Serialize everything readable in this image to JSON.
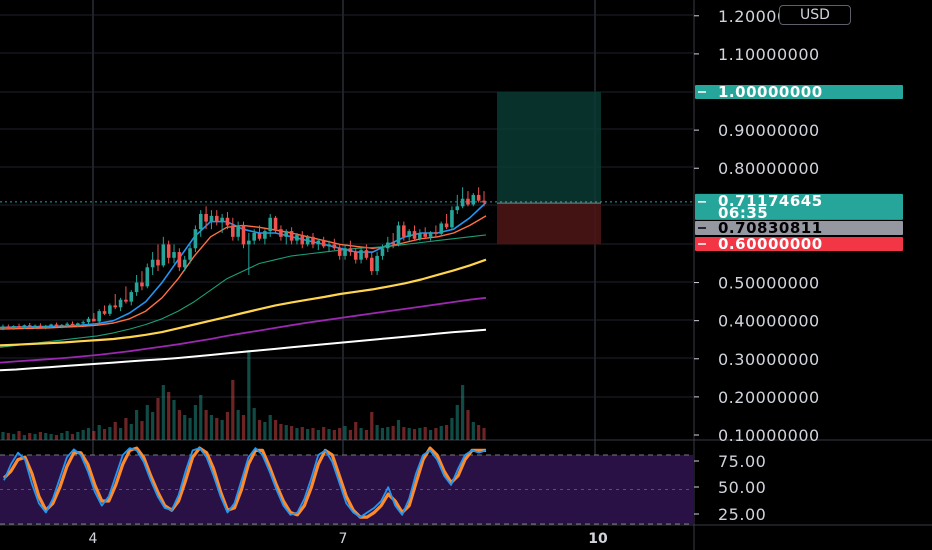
{
  "currency": "USD",
  "colors": {
    "up": "#26a69a",
    "down": "#ef5350",
    "ema_fast": "#2196f3",
    "ema_mid": "#ff7043",
    "ema_green": "#1b9e77",
    "ema_yellow": "#ffd54f",
    "ema_purple": "#9c27b0",
    "ema_white": "#ffffff",
    "stoch_k": "#2196f3",
    "stoch_d": "#ff8a2b",
    "stoch_band": "#2a1145"
  },
  "price_axis": {
    "labels": [
      "1.20000000",
      "1.10000000",
      "0.90000000",
      "0.80000000",
      "0.50000000",
      "0.40000000",
      "0.30000000",
      "0.20000000",
      "0.10000000"
    ],
    "values": [
      1.2,
      1.1,
      0.9,
      0.8,
      0.5,
      0.4,
      0.3,
      0.2,
      0.1
    ]
  },
  "price_tags": [
    {
      "label": "1.00000000",
      "value": 1.0,
      "bg": "#26a69a",
      "fg": "#ffffff"
    },
    {
      "label": "0.71174645",
      "countdown": "06:35",
      "value": 0.71174645,
      "bg": "#26a69a",
      "fg": "#ffffff"
    },
    {
      "label": "0.70830811",
      "value": 0.70830811,
      "bg": "#9598a1",
      "fg": "#000000"
    },
    {
      "label": "0.60000000",
      "value": 0.6,
      "bg": "#f23645",
      "fg": "#ffffff"
    }
  ],
  "position": {
    "target": 1.0,
    "entry": 0.70830811,
    "stop": 0.6
  },
  "stoch_axis": {
    "labels": [
      "75.00",
      "50.00",
      "25.00"
    ],
    "values": [
      75,
      50,
      25
    ]
  },
  "date_axis": {
    "labels": [
      "4",
      "7",
      "10"
    ]
  },
  "chart_data": {
    "type": "candlestick",
    "ylim": [
      0.1,
      1.25
    ],
    "candles": [
      [
        0.38,
        0.39,
        0.375,
        0.385
      ],
      [
        0.385,
        0.39,
        0.378,
        0.382
      ],
      [
        0.382,
        0.388,
        0.376,
        0.386
      ],
      [
        0.386,
        0.392,
        0.38,
        0.384
      ],
      [
        0.384,
        0.39,
        0.378,
        0.388
      ],
      [
        0.388,
        0.394,
        0.382,
        0.385
      ],
      [
        0.385,
        0.39,
        0.379,
        0.387
      ],
      [
        0.387,
        0.393,
        0.381,
        0.383
      ],
      [
        0.383,
        0.389,
        0.377,
        0.386
      ],
      [
        0.386,
        0.392,
        0.38,
        0.39
      ],
      [
        0.39,
        0.395,
        0.383,
        0.385
      ],
      [
        0.385,
        0.391,
        0.38,
        0.389
      ],
      [
        0.389,
        0.396,
        0.384,
        0.392
      ],
      [
        0.392,
        0.398,
        0.386,
        0.388
      ],
      [
        0.388,
        0.395,
        0.383,
        0.393
      ],
      [
        0.393,
        0.4,
        0.388,
        0.396
      ],
      [
        0.396,
        0.41,
        0.39,
        0.405
      ],
      [
        0.405,
        0.42,
        0.4,
        0.398
      ],
      [
        0.398,
        0.43,
        0.395,
        0.425
      ],
      [
        0.425,
        0.44,
        0.415,
        0.418
      ],
      [
        0.418,
        0.445,
        0.412,
        0.44
      ],
      [
        0.44,
        0.47,
        0.43,
        0.435
      ],
      [
        0.435,
        0.46,
        0.425,
        0.455
      ],
      [
        0.455,
        0.49,
        0.445,
        0.45
      ],
      [
        0.45,
        0.48,
        0.44,
        0.475
      ],
      [
        0.475,
        0.52,
        0.465,
        0.5
      ],
      [
        0.5,
        0.53,
        0.48,
        0.49
      ],
      [
        0.49,
        0.55,
        0.485,
        0.54
      ],
      [
        0.54,
        0.58,
        0.52,
        0.56
      ],
      [
        0.56,
        0.6,
        0.53,
        0.545
      ],
      [
        0.545,
        0.62,
        0.54,
        0.6
      ],
      [
        0.6,
        0.61,
        0.55,
        0.565
      ],
      [
        0.565,
        0.6,
        0.55,
        0.58
      ],
      [
        0.58,
        0.59,
        0.53,
        0.54
      ],
      [
        0.54,
        0.57,
        0.53,
        0.56
      ],
      [
        0.56,
        0.6,
        0.55,
        0.59
      ],
      [
        0.59,
        0.65,
        0.58,
        0.64
      ],
      [
        0.64,
        0.69,
        0.62,
        0.68
      ],
      [
        0.68,
        0.7,
        0.64,
        0.66
      ],
      [
        0.66,
        0.69,
        0.64,
        0.675
      ],
      [
        0.675,
        0.69,
        0.65,
        0.66
      ],
      [
        0.66,
        0.68,
        0.63,
        0.67
      ],
      [
        0.67,
        0.685,
        0.64,
        0.65
      ],
      [
        0.65,
        0.67,
        0.61,
        0.62
      ],
      [
        0.62,
        0.66,
        0.61,
        0.65
      ],
      [
        0.65,
        0.66,
        0.59,
        0.6
      ],
      [
        0.6,
        0.63,
        0.52,
        0.61
      ],
      [
        0.61,
        0.64,
        0.6,
        0.63
      ],
      [
        0.63,
        0.65,
        0.61,
        0.615
      ],
      [
        0.615,
        0.64,
        0.6,
        0.635
      ],
      [
        0.635,
        0.68,
        0.62,
        0.67
      ],
      [
        0.67,
        0.675,
        0.63,
        0.64
      ],
      [
        0.64,
        0.65,
        0.61,
        0.62
      ],
      [
        0.62,
        0.64,
        0.6,
        0.635
      ],
      [
        0.635,
        0.645,
        0.6,
        0.61
      ],
      [
        0.61,
        0.63,
        0.6,
        0.625
      ],
      [
        0.625,
        0.635,
        0.59,
        0.6
      ],
      [
        0.6,
        0.625,
        0.595,
        0.62
      ],
      [
        0.62,
        0.63,
        0.59,
        0.6
      ],
      [
        0.6,
        0.615,
        0.585,
        0.61
      ],
      [
        0.61,
        0.62,
        0.59,
        0.595
      ],
      [
        0.595,
        0.61,
        0.58,
        0.6
      ],
      [
        0.6,
        0.615,
        0.585,
        0.59
      ],
      [
        0.59,
        0.6,
        0.56,
        0.57
      ],
      [
        0.57,
        0.6,
        0.56,
        0.59
      ],
      [
        0.59,
        0.61,
        0.57,
        0.58
      ],
      [
        0.58,
        0.59,
        0.55,
        0.56
      ],
      [
        0.56,
        0.59,
        0.55,
        0.585
      ],
      [
        0.585,
        0.6,
        0.56,
        0.565
      ],
      [
        0.565,
        0.58,
        0.52,
        0.53
      ],
      [
        0.53,
        0.58,
        0.52,
        0.57
      ],
      [
        0.57,
        0.6,
        0.56,
        0.59
      ],
      [
        0.59,
        0.62,
        0.58,
        0.605
      ],
      [
        0.605,
        0.63,
        0.59,
        0.6
      ],
      [
        0.6,
        0.66,
        0.595,
        0.65
      ],
      [
        0.65,
        0.66,
        0.61,
        0.62
      ],
      [
        0.62,
        0.64,
        0.61,
        0.635
      ],
      [
        0.635,
        0.65,
        0.61,
        0.615
      ],
      [
        0.615,
        0.64,
        0.61,
        0.63
      ],
      [
        0.63,
        0.645,
        0.615,
        0.62
      ],
      [
        0.62,
        0.635,
        0.61,
        0.632
      ],
      [
        0.632,
        0.65,
        0.62,
        0.628
      ],
      [
        0.628,
        0.66,
        0.625,
        0.655
      ],
      [
        0.655,
        0.68,
        0.64,
        0.645
      ],
      [
        0.645,
        0.7,
        0.64,
        0.69
      ],
      [
        0.69,
        0.73,
        0.68,
        0.7
      ],
      [
        0.7,
        0.75,
        0.695,
        0.72
      ],
      [
        0.72,
        0.74,
        0.7,
        0.705
      ],
      [
        0.705,
        0.735,
        0.7,
        0.73
      ],
      [
        0.73,
        0.75,
        0.71,
        0.715
      ],
      [
        0.715,
        0.74,
        0.7,
        0.71
      ]
    ],
    "volume": [
      0.08,
      0.07,
      0.06,
      0.09,
      0.05,
      0.07,
      0.06,
      0.08,
      0.07,
      0.06,
      0.05,
      0.07,
      0.09,
      0.06,
      0.08,
      0.1,
      0.12,
      0.09,
      0.15,
      0.11,
      0.13,
      0.18,
      0.12,
      0.22,
      0.16,
      0.3,
      0.19,
      0.35,
      0.28,
      0.42,
      0.55,
      0.48,
      0.4,
      0.3,
      0.25,
      0.22,
      0.35,
      0.45,
      0.3,
      0.25,
      0.22,
      0.2,
      0.28,
      0.6,
      0.3,
      0.25,
      0.9,
      0.32,
      0.2,
      0.18,
      0.25,
      0.2,
      0.16,
      0.15,
      0.14,
      0.12,
      0.13,
      0.11,
      0.12,
      0.1,
      0.13,
      0.11,
      0.1,
      0.12,
      0.14,
      0.1,
      0.18,
      0.12,
      0.1,
      0.28,
      0.15,
      0.12,
      0.13,
      0.14,
      0.2,
      0.13,
      0.12,
      0.11,
      0.12,
      0.13,
      0.1,
      0.12,
      0.14,
      0.15,
      0.22,
      0.35,
      0.55,
      0.3,
      0.18,
      0.15,
      0.12
    ],
    "series": [
      {
        "values": [
          0.382,
          0.383,
          0.384,
          0.385,
          0.386,
          0.388,
          0.392,
          0.4,
          0.42,
          0.45,
          0.5,
          0.56,
          0.62,
          0.66,
          0.66,
          0.64,
          0.63,
          0.63,
          0.62,
          0.61,
          0.6,
          0.59,
          0.58,
          0.58,
          0.6,
          0.62,
          0.63,
          0.63,
          0.64,
          0.67,
          0.71
        ]
      },
      {
        "values": [
          0.378,
          0.379,
          0.38,
          0.381,
          0.383,
          0.385,
          0.388,
          0.394,
          0.405,
          0.425,
          0.46,
          0.51,
          0.57,
          0.62,
          0.645,
          0.65,
          0.645,
          0.638,
          0.63,
          0.62,
          0.61,
          0.6,
          0.595,
          0.59,
          0.595,
          0.605,
          0.615,
          0.62,
          0.63,
          0.65,
          0.675
        ]
      },
      {
        "values": [
          0.33,
          0.335,
          0.34,
          0.345,
          0.35,
          0.355,
          0.36,
          0.368,
          0.378,
          0.39,
          0.405,
          0.425,
          0.45,
          0.48,
          0.51,
          0.53,
          0.55,
          0.56,
          0.57,
          0.575,
          0.58,
          0.585,
          0.59,
          0.592,
          0.595,
          0.6,
          0.605,
          0.61,
          0.615,
          0.62,
          0.625
        ]
      },
      {
        "values": [
          0.335,
          0.337,
          0.339,
          0.341,
          0.343,
          0.346,
          0.349,
          0.352,
          0.357,
          0.363,
          0.37,
          0.38,
          0.39,
          0.4,
          0.41,
          0.42,
          0.43,
          0.44,
          0.448,
          0.455,
          0.462,
          0.47,
          0.476,
          0.482,
          0.49,
          0.498,
          0.508,
          0.52,
          0.532,
          0.545,
          0.56
        ]
      },
      {
        "values": [
          0.29,
          0.293,
          0.296,
          0.299,
          0.302,
          0.306,
          0.31,
          0.315,
          0.32,
          0.326,
          0.332,
          0.338,
          0.345,
          0.352,
          0.36,
          0.367,
          0.374,
          0.381,
          0.388,
          0.395,
          0.401,
          0.407,
          0.413,
          0.419,
          0.425,
          0.431,
          0.437,
          0.443,
          0.449,
          0.455,
          0.46
        ]
      },
      {
        "values": [
          0.27,
          0.272,
          0.275,
          0.278,
          0.281,
          0.284,
          0.287,
          0.29,
          0.293,
          0.296,
          0.299,
          0.302,
          0.306,
          0.31,
          0.314,
          0.318,
          0.322,
          0.326,
          0.33,
          0.334,
          0.338,
          0.342,
          0.346,
          0.35,
          0.354,
          0.358,
          0.362,
          0.366,
          0.37,
          0.373,
          0.376
        ]
      }
    ],
    "stoch_k": [
      58,
      72,
      82,
      76,
      55,
      38,
      30,
      42,
      60,
      78,
      85,
      80,
      66,
      48,
      36,
      44,
      62,
      80,
      86,
      84,
      74,
      58,
      44,
      34,
      32,
      45,
      66,
      84,
      86,
      78,
      62,
      44,
      30,
      38,
      58,
      78,
      86,
      80,
      66,
      50,
      36,
      28,
      30,
      42,
      60,
      80,
      84,
      74,
      56,
      38,
      30,
      26,
      30,
      34,
      40,
      52,
      36,
      28,
      42,
      64,
      80,
      84,
      76,
      62,
      54,
      68,
      80,
      84,
      82,
      84
    ],
    "stoch_d": [
      60,
      66,
      76,
      78,
      64,
      44,
      32,
      38,
      52,
      70,
      82,
      82,
      72,
      54,
      40,
      40,
      54,
      72,
      84,
      86,
      78,
      62,
      48,
      36,
      32,
      40,
      58,
      78,
      86,
      82,
      68,
      48,
      32,
      34,
      50,
      72,
      84,
      84,
      70,
      54,
      40,
      30,
      28,
      36,
      52,
      72,
      84,
      80,
      62,
      44,
      32,
      26,
      26,
      30,
      36,
      46,
      40,
      30,
      36,
      56,
      76,
      86,
      80,
      66,
      56,
      62,
      76,
      84,
      84,
      84
    ]
  }
}
